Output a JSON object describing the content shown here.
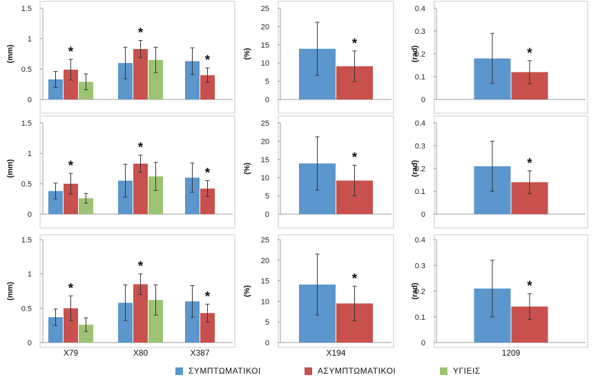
{
  "legend": {
    "items": [
      {
        "label": "ΣΥΜΠΤΩΜΑΤΙΚΟΙ",
        "color": "#5b96cc"
      },
      {
        "label": "ΑΣΥΜΠΤΩΜΑΤΙΚΟΙ",
        "color": "#c9514d"
      },
      {
        "label": "ΥΓΙΕΙΣ",
        "color": "#9cc371"
      }
    ]
  },
  "chart_data": [
    {
      "type": "bar",
      "row": 1,
      "col": 1,
      "ylabel": "(mm)",
      "ylim": [
        0,
        1.5
      ],
      "yticks": [
        0,
        0.5,
        1,
        1.5
      ],
      "ytick_labels": [
        "0",
        "0.5",
        "1",
        "1.5"
      ],
      "categories": [
        "X79",
        "X80",
        "X387"
      ],
      "show_xlabels": false,
      "series": [
        {
          "name": "ΣΥΜΠΤΩΜΑΤΙΚΟΙ",
          "values": [
            0.33,
            0.6,
            0.63
          ],
          "errors": [
            0.13,
            0.26,
            0.22
          ]
        },
        {
          "name": "ΑΣΥΜΠΤΩΜΑΤΙΚΟΙ",
          "values": [
            0.49,
            0.83,
            0.4
          ],
          "errors": [
            0.17,
            0.14,
            0.12
          ]
        },
        {
          "name": "ΥΓΙΕΙΣ",
          "values": [
            0.29,
            0.65,
            null
          ],
          "errors": [
            0.13,
            0.21,
            null
          ]
        }
      ],
      "annotations": [
        {
          "text": "*",
          "category": 0,
          "series": 1
        },
        {
          "text": "*",
          "category": 1,
          "series": 1
        },
        {
          "text": "*",
          "category": 2,
          "series": 1
        }
      ]
    },
    {
      "type": "bar",
      "row": 1,
      "col": 2,
      "ylabel": "(%)",
      "ylim": [
        0,
        25
      ],
      "yticks": [
        0,
        5,
        10,
        15,
        20,
        25
      ],
      "ytick_labels": [
        "0",
        "5",
        "10",
        "15",
        "20",
        "25"
      ],
      "categories": [
        "X194"
      ],
      "show_xlabels": false,
      "series": [
        {
          "name": "ΣΥΜΠΤΩΜΑΤΙΚΟΙ",
          "values": [
            13.9
          ],
          "errors": [
            7.3
          ]
        },
        {
          "name": "ΑΣΥΜΠΤΩΜΑΤΙΚΟΙ",
          "values": [
            9.1
          ],
          "errors": [
            4.2
          ]
        }
      ],
      "annotations": [
        {
          "text": "*",
          "category": 0,
          "series": 1
        }
      ]
    },
    {
      "type": "bar",
      "row": 1,
      "col": 3,
      "ylabel": "(rad)",
      "ylim": [
        0,
        0.4
      ],
      "yticks": [
        0,
        0.1,
        0.2,
        0.3,
        0.4
      ],
      "ytick_labels": [
        "0",
        "0.1",
        "0.2",
        "0.3",
        "0.4"
      ],
      "categories": [
        "1209"
      ],
      "show_xlabels": false,
      "series": [
        {
          "name": "ΣΥΜΠΤΩΜΑΤΙΚΟΙ",
          "values": [
            0.18
          ],
          "errors": [
            0.11
          ]
        },
        {
          "name": "ΑΣΥΜΠΤΩΜΑΤΙΚΟΙ",
          "values": [
            0.12
          ],
          "errors": [
            0.05
          ]
        }
      ],
      "annotations": [
        {
          "text": "*",
          "category": 0,
          "series": 1
        }
      ]
    },
    {
      "type": "bar",
      "row": 2,
      "col": 1,
      "ylabel": "(mm)",
      "ylim": [
        0,
        1.5
      ],
      "yticks": [
        0,
        0.5,
        1,
        1.5
      ],
      "ytick_labels": [
        "0",
        "0.5",
        "1",
        "1.5"
      ],
      "categories": [
        "X79",
        "X80",
        "X387"
      ],
      "show_xlabels": false,
      "series": [
        {
          "name": "ΣΥΜΠΤΩΜΑΤΙΚΟΙ",
          "values": [
            0.38,
            0.55,
            0.6
          ],
          "errors": [
            0.13,
            0.27,
            0.24
          ]
        },
        {
          "name": "ΑΣΥΜΠΤΩΜΑΤΙΚΟΙ",
          "values": [
            0.5,
            0.83,
            0.42
          ],
          "errors": [
            0.17,
            0.14,
            0.13
          ]
        },
        {
          "name": "ΥΓΙΕΙΣ",
          "values": [
            0.26,
            0.62,
            null
          ],
          "errors": [
            0.08,
            0.23,
            null
          ]
        }
      ],
      "annotations": [
        {
          "text": "*",
          "category": 0,
          "series": 1
        },
        {
          "text": "*",
          "category": 1,
          "series": 1
        },
        {
          "text": "*",
          "category": 2,
          "series": 1
        }
      ]
    },
    {
      "type": "bar",
      "row": 2,
      "col": 2,
      "ylabel": "(%)",
      "ylim": [
        0,
        25
      ],
      "yticks": [
        0,
        5,
        10,
        15,
        20,
        25
      ],
      "ytick_labels": [
        "0",
        "5",
        "10",
        "15",
        "20",
        "25"
      ],
      "categories": [
        "X194"
      ],
      "show_xlabels": false,
      "series": [
        {
          "name": "ΣΥΜΠΤΩΜΑΤΙΚΟΙ",
          "values": [
            13.9
          ],
          "errors": [
            7.3
          ]
        },
        {
          "name": "ΑΣΥΜΠΤΩΜΑΤΙΚΟΙ",
          "values": [
            9.2
          ],
          "errors": [
            4.2
          ]
        }
      ],
      "annotations": [
        {
          "text": "*",
          "category": 0,
          "series": 1
        }
      ]
    },
    {
      "type": "bar",
      "row": 2,
      "col": 3,
      "ylabel": "(rad)",
      "ylim": [
        0,
        0.4
      ],
      "yticks": [
        0,
        0.1,
        0.2,
        0.3,
        0.4
      ],
      "ytick_labels": [
        "0",
        "0.1",
        "0.2",
        "0.3",
        "0.4"
      ],
      "categories": [
        "1209"
      ],
      "show_xlabels": false,
      "series": [
        {
          "name": "ΣΥΜΠΤΩΜΑΤΙΚΟΙ",
          "values": [
            0.21
          ],
          "errors": [
            0.11
          ]
        },
        {
          "name": "ΑΣΥΜΠΤΩΜΑΤΙΚΟΙ",
          "values": [
            0.14
          ],
          "errors": [
            0.05
          ]
        }
      ],
      "annotations": [
        {
          "text": "*",
          "category": 0,
          "series": 1
        }
      ]
    },
    {
      "type": "bar",
      "row": 3,
      "col": 1,
      "ylabel": "(mm)",
      "ylim": [
        0,
        1.5
      ],
      "yticks": [
        0,
        0.5,
        1,
        1.5
      ],
      "ytick_labels": [
        "0",
        "0.5",
        "1",
        "1.5"
      ],
      "categories": [
        "X79",
        "X80",
        "X387"
      ],
      "show_xlabels": true,
      "series": [
        {
          "name": "ΣΥΜΠΤΩΜΑΤΙΚΟΙ",
          "values": [
            0.37,
            0.58,
            0.6
          ],
          "errors": [
            0.12,
            0.26,
            0.23
          ]
        },
        {
          "name": "ΑΣΥΜΠΤΩΜΑΤΙΚΟΙ",
          "values": [
            0.5,
            0.85,
            0.43
          ],
          "errors": [
            0.18,
            0.15,
            0.13
          ]
        },
        {
          "name": "ΥΓΙΕΙΣ",
          "values": [
            0.26,
            0.62,
            null
          ],
          "errors": [
            0.1,
            0.22,
            null
          ]
        }
      ],
      "annotations": [
        {
          "text": "*",
          "category": 0,
          "series": 1
        },
        {
          "text": "*",
          "category": 1,
          "series": 1
        },
        {
          "text": "*",
          "category": 2,
          "series": 1
        }
      ]
    },
    {
      "type": "bar",
      "row": 3,
      "col": 2,
      "ylabel": "(%)",
      "ylim": [
        0,
        25
      ],
      "yticks": [
        0,
        5,
        10,
        15,
        20,
        25
      ],
      "ytick_labels": [
        "0",
        "5",
        "10",
        "15",
        "20",
        "25"
      ],
      "categories": [
        "X194"
      ],
      "show_xlabels": true,
      "series": [
        {
          "name": "ΣΥΜΠΤΩΜΑΤΙΚΟΙ",
          "values": [
            14.1
          ],
          "errors": [
            7.4
          ]
        },
        {
          "name": "ΑΣΥΜΠΤΩΜΑΤΙΚΟΙ",
          "values": [
            9.5
          ],
          "errors": [
            4.2
          ]
        }
      ],
      "annotations": [
        {
          "text": "*",
          "category": 0,
          "series": 1
        }
      ]
    },
    {
      "type": "bar",
      "row": 3,
      "col": 3,
      "ylabel": "(rad)",
      "ylim": [
        0,
        0.4
      ],
      "yticks": [
        0,
        0.1,
        0.2,
        0.3,
        0.4
      ],
      "ytick_labels": [
        "0",
        "0.1",
        "0.2",
        "0.3",
        "0.4"
      ],
      "categories": [
        "1209"
      ],
      "show_xlabels": true,
      "series": [
        {
          "name": "ΣΥΜΠΤΩΜΑΤΙΚΟΙ",
          "values": [
            0.21
          ],
          "errors": [
            0.11
          ]
        },
        {
          "name": "ΑΣΥΜΠΤΩΜΑΤΙΚΟΙ",
          "values": [
            0.14
          ],
          "errors": [
            0.05
          ]
        }
      ],
      "annotations": [
        {
          "text": "*",
          "category": 0,
          "series": 1
        }
      ]
    }
  ]
}
